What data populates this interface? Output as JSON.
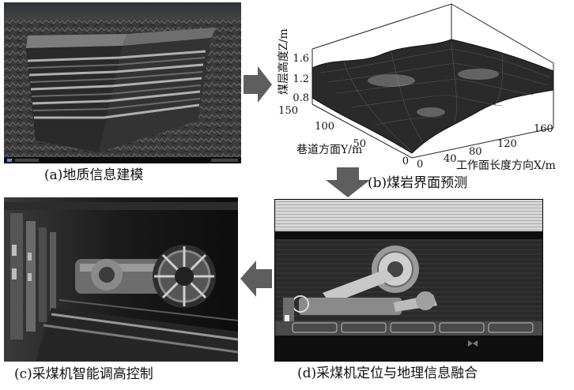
{
  "captions": {
    "a": "(a)地质信息建模",
    "b": "(b)煤岩界面预测",
    "c": "(c)采煤机智能调高控制",
    "d": "(d)采煤机定位与地理信息融合"
  },
  "plot3d": {
    "z_label": "煤层高度Z/m",
    "y_label": "巷道方面Y/m",
    "x_label": "工作面长度方向X/m",
    "z_ticks": [
      "1.6",
      "1.2",
      "0.8"
    ],
    "y_ticks": [
      "150",
      "100",
      "50",
      "0"
    ],
    "x_ticks": [
      "0",
      "40",
      "80",
      "120",
      "160"
    ]
  },
  "colors": {
    "arrow": "#5e5e5e",
    "surface": "#2a2a2a",
    "dark_scene": "#151515"
  }
}
